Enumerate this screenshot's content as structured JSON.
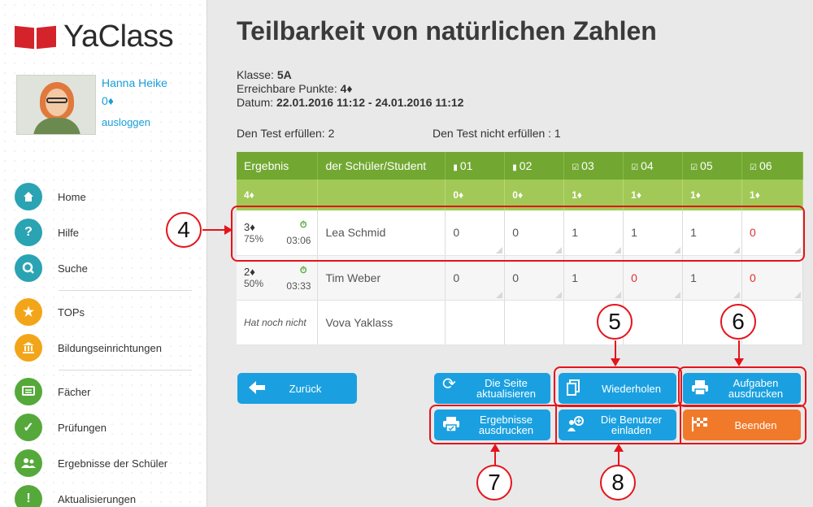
{
  "app": {
    "logo_text": "YaClass",
    "brand_color": "#d4232b"
  },
  "profile": {
    "name": "Hanna Heike",
    "points": "0♦",
    "logout": "ausloggen"
  },
  "nav": [
    {
      "label": "Home",
      "icon": "home-icon"
    },
    {
      "label": "Hilfe",
      "icon": "help-icon"
    },
    {
      "label": "Suche",
      "icon": "search-icon"
    },
    {
      "label": "TOPs",
      "icon": "star-icon"
    },
    {
      "label": "Bildungseinrichtungen",
      "icon": "institution-icon"
    },
    {
      "label": "Fächer",
      "icon": "subjects-icon"
    },
    {
      "label": "Prüfungen",
      "icon": "check-icon"
    },
    {
      "label": "Ergebnisse der Schüler",
      "icon": "users-icon"
    },
    {
      "label": "Aktualisierungen",
      "icon": "exclamation-icon"
    }
  ],
  "page": {
    "title": "Teilbarkeit von natürlichen Zahlen",
    "class_label": "Klasse:",
    "class_value": "5A",
    "points_label": "Erreichbare Punkte:",
    "points_value": "4♦",
    "date_label": "Datum:",
    "date_value": "22.01.2016 11:12 - 24.01.2016 11:12",
    "passed": "Den Test erfüllen: 2",
    "failed": "Den Test nicht erfüllen : 1"
  },
  "table": {
    "headers": [
      "Ergebnis",
      "der Schüler/Student",
      "01",
      "02",
      "03",
      "04",
      "05",
      "06"
    ],
    "max_points": [
      "4♦",
      "",
      "0♦",
      "0♦",
      "1♦",
      "1♦",
      "1♦",
      "1♦"
    ],
    "rows": [
      {
        "score": "3♦",
        "percent": "75%",
        "time": "03:06",
        "name": "Lea Schmid",
        "values": [
          "0",
          "0",
          "1",
          "1",
          "1",
          "0"
        ]
      },
      {
        "score": "2♦",
        "percent": "50%",
        "time": "03:33",
        "name": "Tim Weber",
        "values": [
          "0",
          "0",
          "1",
          "0",
          "1",
          "0"
        ]
      },
      {
        "status": "Hat noch nicht",
        "name": "Vova Yaklass"
      }
    ]
  },
  "buttons": {
    "back": "Zurück",
    "refresh": "Die Seite aktualisieren",
    "repeat": "Wiederholen",
    "print_tasks": "Aufgaben ausdrucken",
    "print_results": "Ergebnisse ausdrucken",
    "invite": "Die Benutzer einladen",
    "finish": "Beenden"
  },
  "callouts": [
    "4",
    "5",
    "6",
    "7",
    "8"
  ],
  "colors": {
    "header_green": "#72a831",
    "points_green": "#a2c957",
    "button_blue": "#1aa0e0",
    "button_orange": "#f07a2a",
    "annotation_red": "#e4141b"
  }
}
